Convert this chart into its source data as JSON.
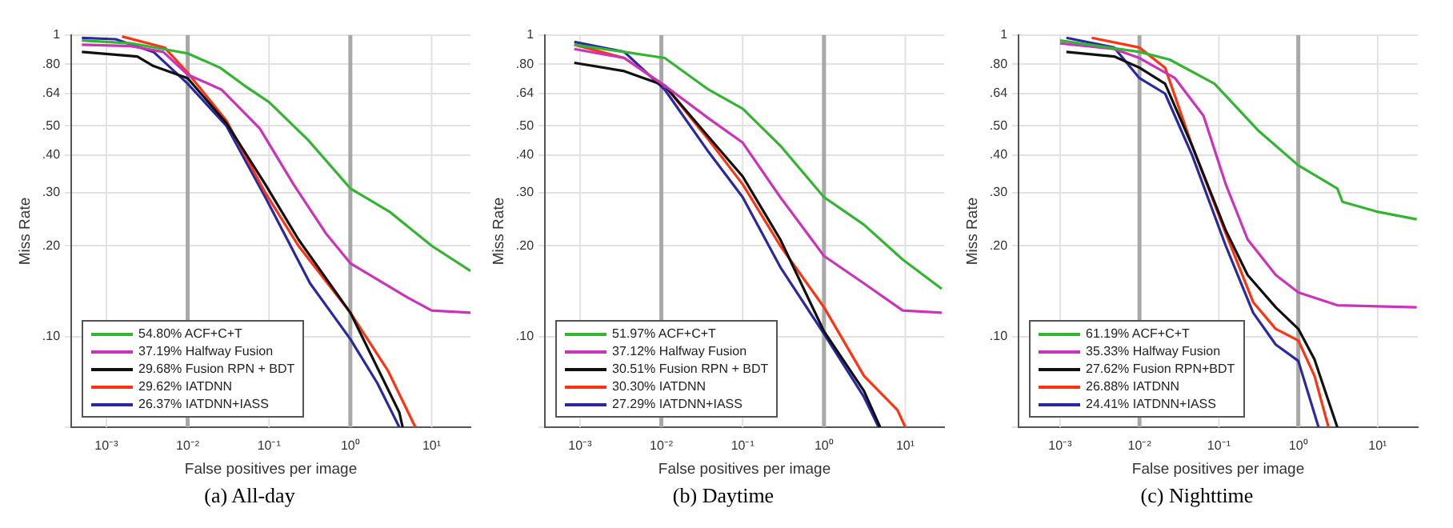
{
  "chart_data": [
    {
      "type": "line",
      "title": "(a) All-day",
      "xlabel": "False positives per image",
      "ylabel": "Miss Rate",
      "log": "xy",
      "grid": "y",
      "legend": "bottom left",
      "marker": "none",
      "line_style": "solid",
      "xlim": [
        0.00037,
        30
      ],
      "ylim": [
        0.05,
        1
      ],
      "xticks": [
        {
          "value": 0.001,
          "label": "10⁻³"
        },
        {
          "value": 0.01,
          "label": "10⁻²"
        },
        {
          "value": 0.1,
          "label": "10⁻¹"
        },
        {
          "value": 1,
          "label": "10⁰"
        },
        {
          "value": 10,
          "label": "10¹"
        }
      ],
      "yticks": [
        {
          "value": 0.05,
          "label": null
        },
        {
          "value": 0.1,
          "label": ".10"
        },
        {
          "value": 0.2,
          "label": ".20"
        },
        {
          "value": 0.3,
          "label": ".30"
        },
        {
          "value": 0.4,
          "label": ".40"
        },
        {
          "value": 0.5,
          "label": ".50"
        },
        {
          "value": 0.64,
          "label": ".64"
        },
        {
          "value": 0.8,
          "label": ".80"
        },
        {
          "value": 1,
          "label": "1"
        }
      ],
      "ref_lines": [
        {
          "axis": "x",
          "value": 0.001,
          "color": "#e2e2e2"
        },
        {
          "axis": "x",
          "value": 0.01,
          "color": "#a8a8a8"
        },
        {
          "axis": "x",
          "value": 0.1,
          "color": "#e2e2e2"
        },
        {
          "axis": "x",
          "value": 1,
          "color": "#a8a8a8"
        },
        {
          "axis": "x",
          "value": 10,
          "color": "#e2e2e2"
        }
      ],
      "series": [
        {
          "name": "54.80% ACF+C+T",
          "color": "#33b533",
          "x": [
            0.0005,
            0.002,
            0.005,
            0.01,
            0.025,
            0.05,
            0.1,
            0.3,
            1,
            3,
            10,
            30
          ],
          "values": [
            0.96,
            0.94,
            0.9,
            0.87,
            0.78,
            0.68,
            0.6,
            0.45,
            0.31,
            0.26,
            0.2,
            0.165
          ]
        },
        {
          "name": "37.19% Halfway Fusion",
          "color": "#cc33bb",
          "x": [
            0.0005,
            0.002,
            0.005,
            0.01,
            0.026,
            0.077,
            0.2,
            0.5,
            1,
            5,
            10,
            30
          ],
          "values": [
            0.93,
            0.92,
            0.88,
            0.74,
            0.66,
            0.49,
            0.32,
            0.22,
            0.175,
            0.135,
            0.122,
            0.12
          ]
        },
        {
          "name": "29.68% Fusion RPN + BDT",
          "color": "#111111",
          "x": [
            0.0005,
            0.0024,
            0.0038,
            0.01,
            0.03,
            0.09,
            0.23,
            1,
            4,
            4.4
          ],
          "values": [
            0.88,
            0.85,
            0.79,
            0.72,
            0.51,
            0.32,
            0.21,
            0.12,
            0.056,
            0.05
          ]
        },
        {
          "name": "29.62% IATDNN",
          "color": "#ff3311",
          "x": [
            0.00156,
            0.0052,
            0.01,
            0.03,
            0.09,
            0.23,
            1,
            2.9,
            6.3
          ],
          "values": [
            0.99,
            0.91,
            0.75,
            0.52,
            0.3,
            0.2,
            0.12,
            0.077,
            0.05
          ]
        },
        {
          "name": "26.37% IATDNN+IASS",
          "color": "#2a2aa0",
          "x": [
            0.0005,
            0.0013,
            0.0038,
            0.01,
            0.03,
            0.09,
            0.32,
            1,
            2.15,
            4
          ],
          "values": [
            0.98,
            0.97,
            0.88,
            0.69,
            0.5,
            0.29,
            0.15,
            0.098,
            0.07,
            0.05
          ]
        }
      ]
    },
    {
      "type": "line",
      "title": "(b) Daytime",
      "xlabel": "False positives per image",
      "ylabel": "Miss Rate",
      "log": "xy",
      "grid": "y",
      "legend": "bottom left",
      "marker": "none",
      "line_style": "solid",
      "xlim": [
        0.00037,
        30
      ],
      "ylim": [
        0.05,
        1
      ],
      "xticks": [
        {
          "value": 0.001,
          "label": "10⁻³"
        },
        {
          "value": 0.01,
          "label": "10⁻²"
        },
        {
          "value": 0.1,
          "label": "10⁻¹"
        },
        {
          "value": 1,
          "label": "10⁰"
        },
        {
          "value": 10,
          "label": "10¹"
        }
      ],
      "yticks": [
        {
          "value": 0.05,
          "label": null
        },
        {
          "value": 0.1,
          "label": ".10"
        },
        {
          "value": 0.2,
          "label": ".20"
        },
        {
          "value": 0.3,
          "label": ".30"
        },
        {
          "value": 0.4,
          "label": ".40"
        },
        {
          "value": 0.5,
          "label": ".50"
        },
        {
          "value": 0.64,
          "label": ".64"
        },
        {
          "value": 0.8,
          "label": ".80"
        },
        {
          "value": 1,
          "label": "1"
        }
      ],
      "ref_lines": [
        {
          "axis": "x",
          "value": 0.001,
          "color": "#e2e2e2"
        },
        {
          "axis": "x",
          "value": 0.01,
          "color": "#a8a8a8"
        },
        {
          "axis": "x",
          "value": 0.1,
          "color": "#e2e2e2"
        },
        {
          "axis": "x",
          "value": 1,
          "color": "#a8a8a8"
        },
        {
          "axis": "x",
          "value": 10,
          "color": "#e2e2e2"
        }
      ],
      "series": [
        {
          "name": "51.97% ACF+C+T",
          "color": "#33b533",
          "x": [
            0.00085,
            0.0035,
            0.011,
            0.038,
            0.1,
            0.29,
            1,
            3.1,
            9.3,
            28
          ],
          "values": [
            0.93,
            0.88,
            0.84,
            0.66,
            0.57,
            0.43,
            0.29,
            0.235,
            0.18,
            0.144
          ]
        },
        {
          "name": "37.12% Halfway Fusion",
          "color": "#cc33bb",
          "x": [
            0.00085,
            0.0035,
            0.011,
            0.038,
            0.1,
            0.29,
            1,
            3.1,
            9.3,
            28
          ],
          "values": [
            0.9,
            0.84,
            0.68,
            0.53,
            0.44,
            0.29,
            0.185,
            0.15,
            0.122,
            0.12
          ]
        },
        {
          "name": "30.51% Fusion RPN + BDT",
          "color": "#111111",
          "x": [
            0.00085,
            0.0035,
            0.011,
            0.038,
            0.1,
            0.29,
            1,
            3.1,
            4.9
          ],
          "values": [
            0.81,
            0.76,
            0.68,
            0.46,
            0.34,
            0.21,
            0.104,
            0.066,
            0.05
          ]
        },
        {
          "name": "30.30% IATDNN",
          "color": "#ff3311",
          "x": [
            0.00085,
            0.0035,
            0.011,
            0.038,
            0.1,
            0.29,
            1,
            3.1,
            8,
            10
          ],
          "values": [
            0.93,
            0.84,
            0.68,
            0.45,
            0.32,
            0.2,
            0.125,
            0.074,
            0.057,
            0.05
          ]
        },
        {
          "name": "27.29% IATDNN+IASS",
          "color": "#2a2aa0",
          "x": [
            0.00085,
            0.0035,
            0.011,
            0.038,
            0.1,
            0.29,
            1,
            3.1,
            4.7
          ],
          "values": [
            0.95,
            0.88,
            0.66,
            0.41,
            0.29,
            0.17,
            0.102,
            0.063,
            0.05
          ]
        }
      ]
    },
    {
      "type": "line",
      "title": "(c) Nighttime",
      "xlabel": "False positives per image",
      "ylabel": "Miss Rate",
      "log": "xy",
      "grid": "y",
      "legend": "bottom left",
      "marker": "none",
      "line_style": "solid",
      "xlim": [
        0.0003,
        32
      ],
      "ylim": [
        0.05,
        1
      ],
      "xticks": [
        {
          "value": 0.001,
          "label": "10⁻³"
        },
        {
          "value": 0.01,
          "label": "10⁻²"
        },
        {
          "value": 0.1,
          "label": "10⁻¹"
        },
        {
          "value": 1,
          "label": "10⁰"
        },
        {
          "value": 10,
          "label": "10¹"
        }
      ],
      "yticks": [
        {
          "value": 0.05,
          "label": null
        },
        {
          "value": 0.1,
          "label": ".10"
        },
        {
          "value": 0.2,
          "label": ".20"
        },
        {
          "value": 0.3,
          "label": ".30"
        },
        {
          "value": 0.4,
          "label": ".40"
        },
        {
          "value": 0.5,
          "label": ".50"
        },
        {
          "value": 0.64,
          "label": ".64"
        },
        {
          "value": 0.8,
          "label": ".80"
        },
        {
          "value": 1,
          "label": "1"
        }
      ],
      "ref_lines": [
        {
          "axis": "x",
          "value": 0.001,
          "color": "#e2e2e2"
        },
        {
          "axis": "x",
          "value": 0.01,
          "color": "#a8a8a8"
        },
        {
          "axis": "x",
          "value": 0.1,
          "color": "#e2e2e2"
        },
        {
          "axis": "x",
          "value": 1,
          "color": "#a8a8a8"
        },
        {
          "axis": "x",
          "value": 10,
          "color": "#e2e2e2"
        }
      ],
      "series": [
        {
          "name": "61.19% ACF+C+T",
          "color": "#33b533",
          "x": [
            0.001,
            0.01,
            0.024,
            0.088,
            0.32,
            1,
            3.1,
            3.6,
            9.6,
            31
          ],
          "values": [
            0.96,
            0.88,
            0.83,
            0.69,
            0.48,
            0.37,
            0.31,
            0.28,
            0.26,
            0.245
          ]
        },
        {
          "name": "35.33% Halfway Fusion",
          "color": "#cc33bb",
          "x": [
            0.001,
            0.0048,
            0.01,
            0.028,
            0.064,
            0.122,
            0.23,
            0.52,
            1,
            3.1,
            31
          ],
          "values": [
            0.94,
            0.9,
            0.84,
            0.72,
            0.54,
            0.32,
            0.21,
            0.16,
            0.14,
            0.127,
            0.125
          ]
        },
        {
          "name": "27.62% Fusion RPN+BDT",
          "color": "#111111",
          "x": [
            0.0012,
            0.0048,
            0.01,
            0.021,
            0.046,
            0.122,
            0.23,
            0.52,
            1,
            1.6,
            3.1
          ],
          "values": [
            0.88,
            0.85,
            0.78,
            0.69,
            0.43,
            0.225,
            0.16,
            0.125,
            0.106,
            0.084,
            0.05
          ]
        },
        {
          "name": "26.88% IATDNN",
          "color": "#ff3311",
          "x": [
            0.0025,
            0.01,
            0.021,
            0.046,
            0.122,
            0.27,
            0.52,
            1,
            1.6,
            2.4
          ],
          "values": [
            0.98,
            0.91,
            0.78,
            0.43,
            0.22,
            0.13,
            0.106,
            0.097,
            0.074,
            0.05
          ]
        },
        {
          "name": "24.41% IATDNN+IASS",
          "color": "#2a2aa0",
          "x": [
            0.0012,
            0.0048,
            0.01,
            0.021,
            0.046,
            0.122,
            0.27,
            0.52,
            1,
            1.8
          ],
          "values": [
            0.98,
            0.91,
            0.72,
            0.64,
            0.4,
            0.2,
            0.12,
            0.094,
            0.083,
            0.05
          ]
        }
      ]
    }
  ]
}
